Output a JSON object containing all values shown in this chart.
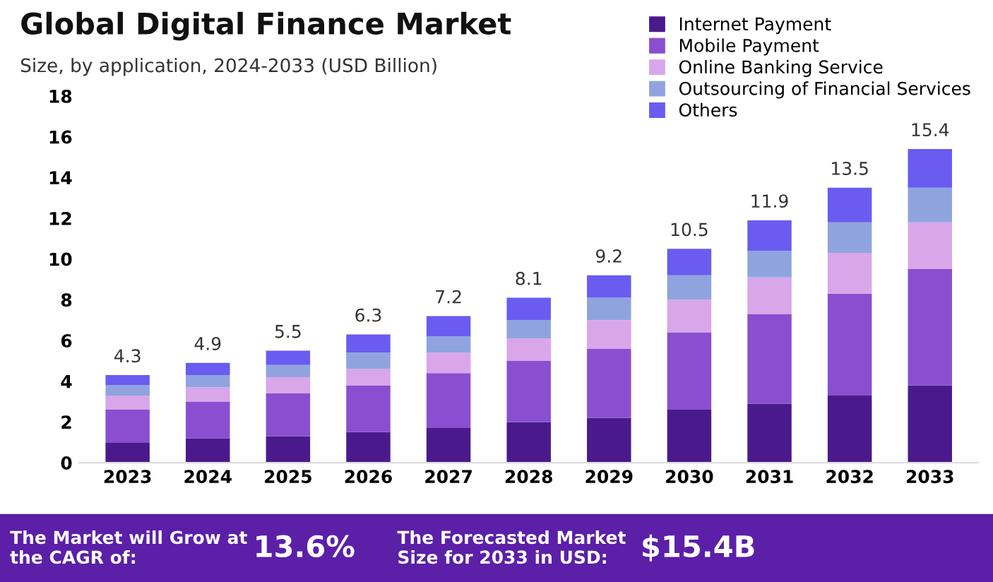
{
  "chart_data": {
    "type": "bar",
    "title": "Global Digital Finance Market",
    "subtitle": "Size, by application, 2024-2033 (USD Billion)",
    "categories": [
      "2023",
      "2024",
      "2025",
      "2026",
      "2027",
      "2028",
      "2029",
      "2030",
      "2031",
      "2032",
      "2033"
    ],
    "stacked": true,
    "series": [
      {
        "name": "Internet Payment",
        "color": "#4a1a8c",
        "values": [
          1.0,
          1.2,
          1.3,
          1.5,
          1.7,
          2.0,
          2.2,
          2.6,
          2.9,
          3.3,
          3.8
        ]
      },
      {
        "name": "Mobile Payment",
        "color": "#8a4fd0",
        "values": [
          1.6,
          1.8,
          2.1,
          2.3,
          2.7,
          3.0,
          3.4,
          3.8,
          4.4,
          5.0,
          5.7
        ]
      },
      {
        "name": "Online Banking Service",
        "color": "#d9a6ea",
        "values": [
          0.7,
          0.7,
          0.8,
          0.8,
          1.0,
          1.1,
          1.4,
          1.6,
          1.8,
          2.0,
          2.3
        ]
      },
      {
        "name": "Outsourcing of Financial Services",
        "color": "#8fa4df",
        "values": [
          0.5,
          0.6,
          0.6,
          0.8,
          0.8,
          0.9,
          1.1,
          1.2,
          1.3,
          1.5,
          1.7
        ]
      },
      {
        "name": "Others",
        "color": "#6a5cf0",
        "values": [
          0.5,
          0.6,
          0.7,
          0.9,
          1.0,
          1.1,
          1.1,
          1.3,
          1.5,
          1.7,
          1.9
        ]
      }
    ],
    "totals": [
      "4.3",
      "4.9",
      "5.5",
      "6.3",
      "7.2",
      "8.1",
      "9.2",
      "10.5",
      "11.9",
      "13.5",
      "15.4"
    ],
    "ylim": [
      0,
      18
    ],
    "yticks": [
      0,
      2,
      4,
      6,
      8,
      10,
      12,
      14,
      16,
      18
    ],
    "grid": false,
    "legend": "top right",
    "annotations": [
      "The Market will Grow at the CAGR of:",
      "13.6%",
      "The Forecasted Market Size for 2033 in USD:",
      "$15.4B"
    ]
  }
}
